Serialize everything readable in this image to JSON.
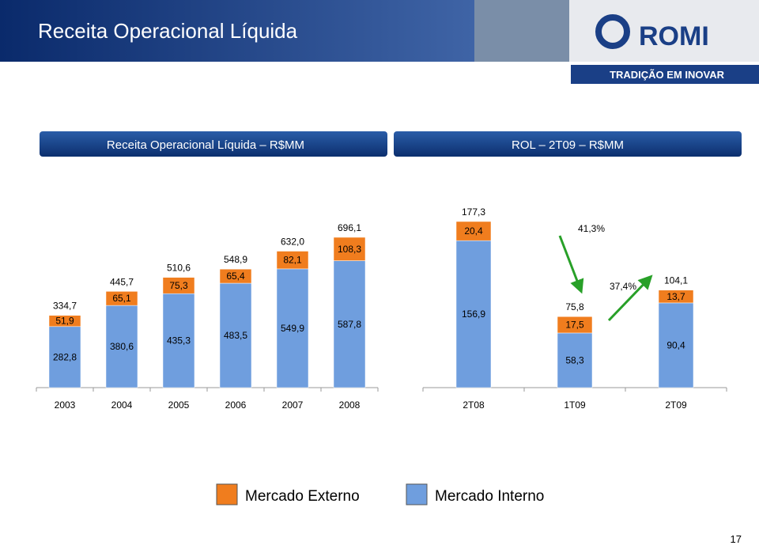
{
  "header": {
    "title": "Receita Operacional Líquida",
    "logo": "ROMI",
    "tagline": "TRADIÇÃO EM INOVAR"
  },
  "chart_data": [
    {
      "type": "bar",
      "stacked": true,
      "title": "Receita Operacional Líquida – R$MM",
      "categories": [
        "2003",
        "2004",
        "2005",
        "2006",
        "2007",
        "2008"
      ],
      "series": [
        {
          "name": "Mercado Interno",
          "color": "#6f9ede",
          "values": [
            282.8,
            380.6,
            435.3,
            483.5,
            549.9,
            587.8
          ],
          "value_labels": [
            "282,8",
            "380,6",
            "435,3",
            "483,5",
            "549,9",
            "587,8"
          ]
        },
        {
          "name": "Mercado Externo",
          "color": "#f07d1e",
          "values": [
            51.9,
            65.1,
            75.3,
            65.4,
            82.1,
            108.3
          ],
          "value_labels": [
            "51,9",
            "65,1",
            "75,3",
            "65,4",
            "82,1",
            "108,3"
          ]
        }
      ],
      "totals": [
        334.7,
        445.7,
        510.6,
        548.9,
        632.0,
        696.1
      ],
      "total_labels": [
        "334,7",
        "445,7",
        "510,6",
        "548,9",
        "632,0",
        "696,1"
      ]
    },
    {
      "type": "bar",
      "stacked": true,
      "title": "ROL – 2T09 – R$MM",
      "categories": [
        "2T08",
        "1T09",
        "2T09"
      ],
      "series": [
        {
          "name": "Mercado Interno",
          "color": "#6f9ede",
          "values": [
            156.9,
            58.3,
            90.4
          ],
          "value_labels": [
            "156,9",
            "58,3",
            "90,4"
          ]
        },
        {
          "name": "Mercado Externo",
          "color": "#f07d1e",
          "values": [
            20.4,
            17.5,
            13.7
          ],
          "value_labels": [
            "20,4",
            "17,5",
            "13,7"
          ]
        }
      ],
      "totals": [
        177.3,
        75.8,
        104.1
      ],
      "total_labels": [
        "177,3",
        "75,8",
        "104,1"
      ],
      "annotations": [
        {
          "text": "41,3%"
        },
        {
          "text": "37,4%"
        }
      ]
    }
  ],
  "page_number": "17"
}
